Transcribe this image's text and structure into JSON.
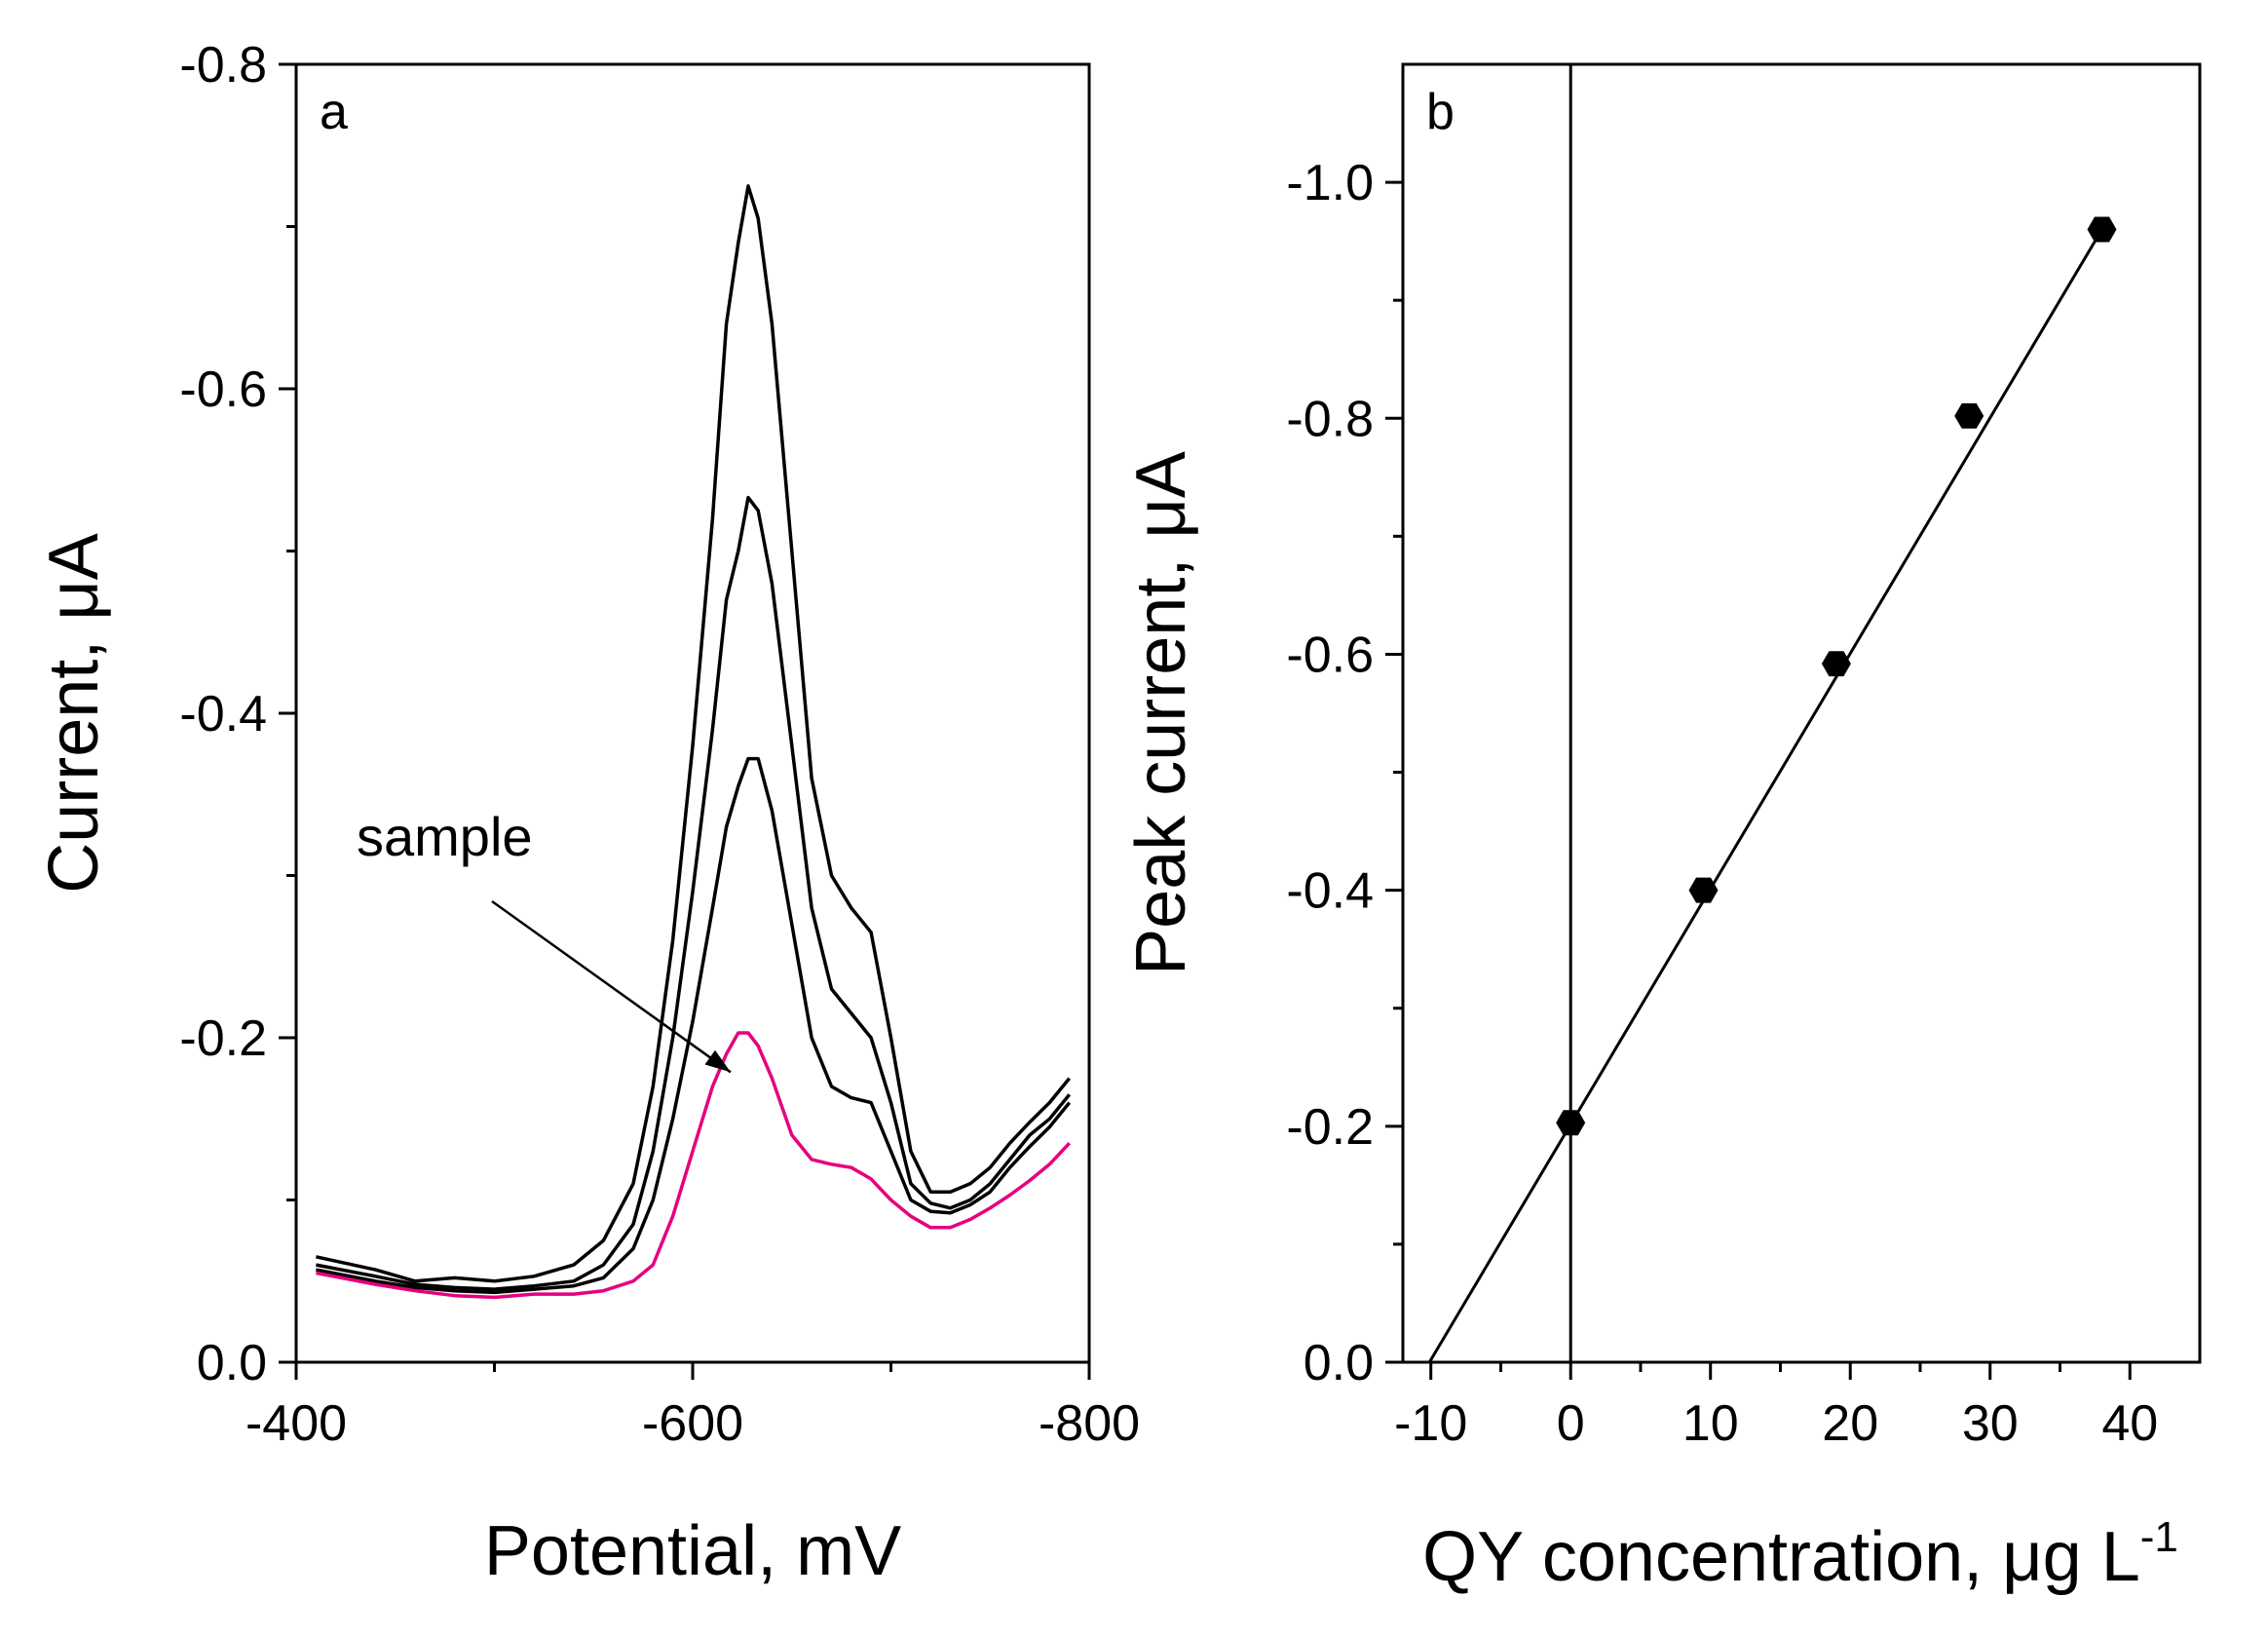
{
  "chart_data": [
    {
      "panel_label": "a",
      "type": "line",
      "xlabel": "Potential, mV",
      "ylabel": "Current, μA",
      "xlim": [
        -400,
        -800
      ],
      "ylim": [
        0,
        -0.8
      ],
      "xticks": [
        -400,
        -600,
        -800
      ],
      "yticks": [
        0.0,
        -0.2,
        -0.4,
        -0.6,
        -0.8
      ],
      "xtick_labels": [
        "-400",
        "-600",
        "-800"
      ],
      "ytick_labels": [
        "0.0",
        "-0.2",
        "-0.4",
        "-0.6",
        "-0.8"
      ],
      "grid": false,
      "annotation": {
        "text": "sample",
        "arrow_to": [
          -625,
          -0.18
        ]
      },
      "series": [
        {
          "color": "#000000",
          "x": [
            -410,
            -440,
            -460,
            -480,
            -500,
            -520,
            -540,
            -555,
            -570,
            -580,
            -590,
            -600,
            -610,
            -617,
            -623,
            -628,
            -633,
            -640,
            -650,
            -660,
            -670,
            -680,
            -690,
            -700,
            -710,
            -720,
            -730,
            -740,
            -750,
            -760,
            -770,
            -780,
            -790
          ],
          "y": [
            -0.065,
            -0.057,
            -0.05,
            -0.052,
            -0.05,
            -0.053,
            -0.06,
            -0.075,
            -0.11,
            -0.17,
            -0.26,
            -0.38,
            -0.52,
            -0.64,
            -0.69,
            -0.725,
            -0.705,
            -0.64,
            -0.5,
            -0.36,
            -0.3,
            -0.28,
            -0.265,
            -0.2,
            -0.13,
            -0.105,
            -0.105,
            -0.11,
            -0.12,
            -0.135,
            -0.148,
            -0.16,
            -0.175
          ]
        },
        {
          "color": "#000000",
          "x": [
            -410,
            -440,
            -460,
            -480,
            -500,
            -520,
            -540,
            -555,
            -570,
            -580,
            -590,
            -600,
            -610,
            -617,
            -623,
            -628,
            -633,
            -640,
            -650,
            -660,
            -670,
            -680,
            -690,
            -700,
            -710,
            -720,
            -730,
            -740,
            -750,
            -760,
            -770,
            -780,
            -790
          ],
          "y": [
            -0.06,
            -0.053,
            -0.048,
            -0.046,
            -0.045,
            -0.047,
            -0.05,
            -0.06,
            -0.085,
            -0.13,
            -0.2,
            -0.29,
            -0.39,
            -0.47,
            -0.5,
            -0.533,
            -0.525,
            -0.48,
            -0.38,
            -0.28,
            -0.23,
            -0.215,
            -0.2,
            -0.16,
            -0.11,
            -0.098,
            -0.095,
            -0.1,
            -0.11,
            -0.125,
            -0.14,
            -0.15,
            -0.165
          ]
        },
        {
          "color": "#000000",
          "x": [
            -410,
            -440,
            -460,
            -480,
            -500,
            -520,
            -540,
            -555,
            -570,
            -580,
            -590,
            -600,
            -610,
            -617,
            -623,
            -628,
            -633,
            -640,
            -650,
            -660,
            -670,
            -680,
            -690,
            -700,
            -710,
            -720,
            -730,
            -740,
            -750,
            -760,
            -770,
            -780,
            -790
          ],
          "y": [
            -0.057,
            -0.05,
            -0.046,
            -0.044,
            -0.043,
            -0.045,
            -0.047,
            -0.052,
            -0.07,
            -0.1,
            -0.15,
            -0.21,
            -0.28,
            -0.33,
            -0.355,
            -0.372,
            -0.372,
            -0.34,
            -0.27,
            -0.2,
            -0.17,
            -0.163,
            -0.16,
            -0.13,
            -0.1,
            -0.093,
            -0.092,
            -0.097,
            -0.105,
            -0.12,
            -0.133,
            -0.145,
            -0.16
          ]
        },
        {
          "name": "sample",
          "color": "#e6007e",
          "x": [
            -410,
            -440,
            -460,
            -480,
            -500,
            -520,
            -540,
            -555,
            -570,
            -580,
            -590,
            -600,
            -610,
            -617,
            -623,
            -628,
            -633,
            -640,
            -650,
            -660,
            -670,
            -680,
            -690,
            -700,
            -710,
            -720,
            -730,
            -740,
            -750,
            -760,
            -770,
            -780,
            -790
          ],
          "y": [
            -0.055,
            -0.048,
            -0.044,
            -0.041,
            -0.04,
            -0.042,
            -0.042,
            -0.044,
            -0.05,
            -0.06,
            -0.09,
            -0.13,
            -0.17,
            -0.19,
            -0.203,
            -0.203,
            -0.195,
            -0.175,
            -0.14,
            -0.125,
            -0.122,
            -0.12,
            -0.113,
            -0.1,
            -0.09,
            -0.083,
            -0.083,
            -0.088,
            -0.095,
            -0.103,
            -0.112,
            -0.122,
            -0.135
          ]
        }
      ]
    },
    {
      "panel_label": "b",
      "type": "scatter",
      "xlabel": "QY concentration, μg L",
      "xlabel_sup": "-1",
      "ylabel": "Peak current, μA",
      "xlim": [
        -12,
        45
      ],
      "ylim": [
        0,
        -1.1
      ],
      "xticks": [
        -10,
        0,
        10,
        20,
        30,
        40
      ],
      "yticks": [
        0.0,
        -0.2,
        -0.4,
        -0.6,
        -0.8,
        -1.0
      ],
      "xtick_labels": [
        "-10",
        "0",
        "10",
        "20",
        "30",
        "40"
      ],
      "ytick_labels": [
        "0.0",
        "-0.2",
        "-0.4",
        "-0.6",
        "-0.8",
        "-1.0"
      ],
      "grid": false,
      "marker": "hexagon",
      "points": {
        "x": [
          0,
          9.5,
          19,
          28.5,
          38
        ],
        "y": [
          -0.203,
          -0.4,
          -0.592,
          -0.802,
          -0.96
        ]
      },
      "fit_line": {
        "x": [
          -10.1,
          38
        ],
        "y": [
          0,
          -0.96
        ]
      },
      "vertical_line_x": 0
    }
  ]
}
